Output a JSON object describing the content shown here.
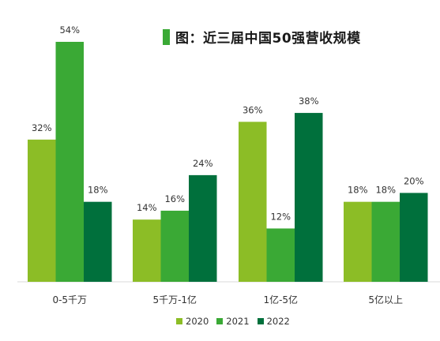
{
  "chart_data": {
    "type": "bar",
    "title": "图：近三届中国50强营收规模",
    "categories": [
      "0-5千万",
      "5千万-1亿",
      "1亿-5亿",
      "5亿以上"
    ],
    "series": [
      {
        "name": "2020",
        "color": "#8cbd26",
        "values": [
          32,
          14,
          36,
          18
        ]
      },
      {
        "name": "2021",
        "color": "#3aa935",
        "values": [
          54,
          16,
          12,
          18
        ]
      },
      {
        "name": "2022",
        "color": "#00703c",
        "values": [
          18,
          24,
          38,
          20
        ]
      }
    ],
    "value_suffix": "%",
    "ylim": [
      0,
      60
    ],
    "grid": false,
    "legend": "bottom"
  }
}
